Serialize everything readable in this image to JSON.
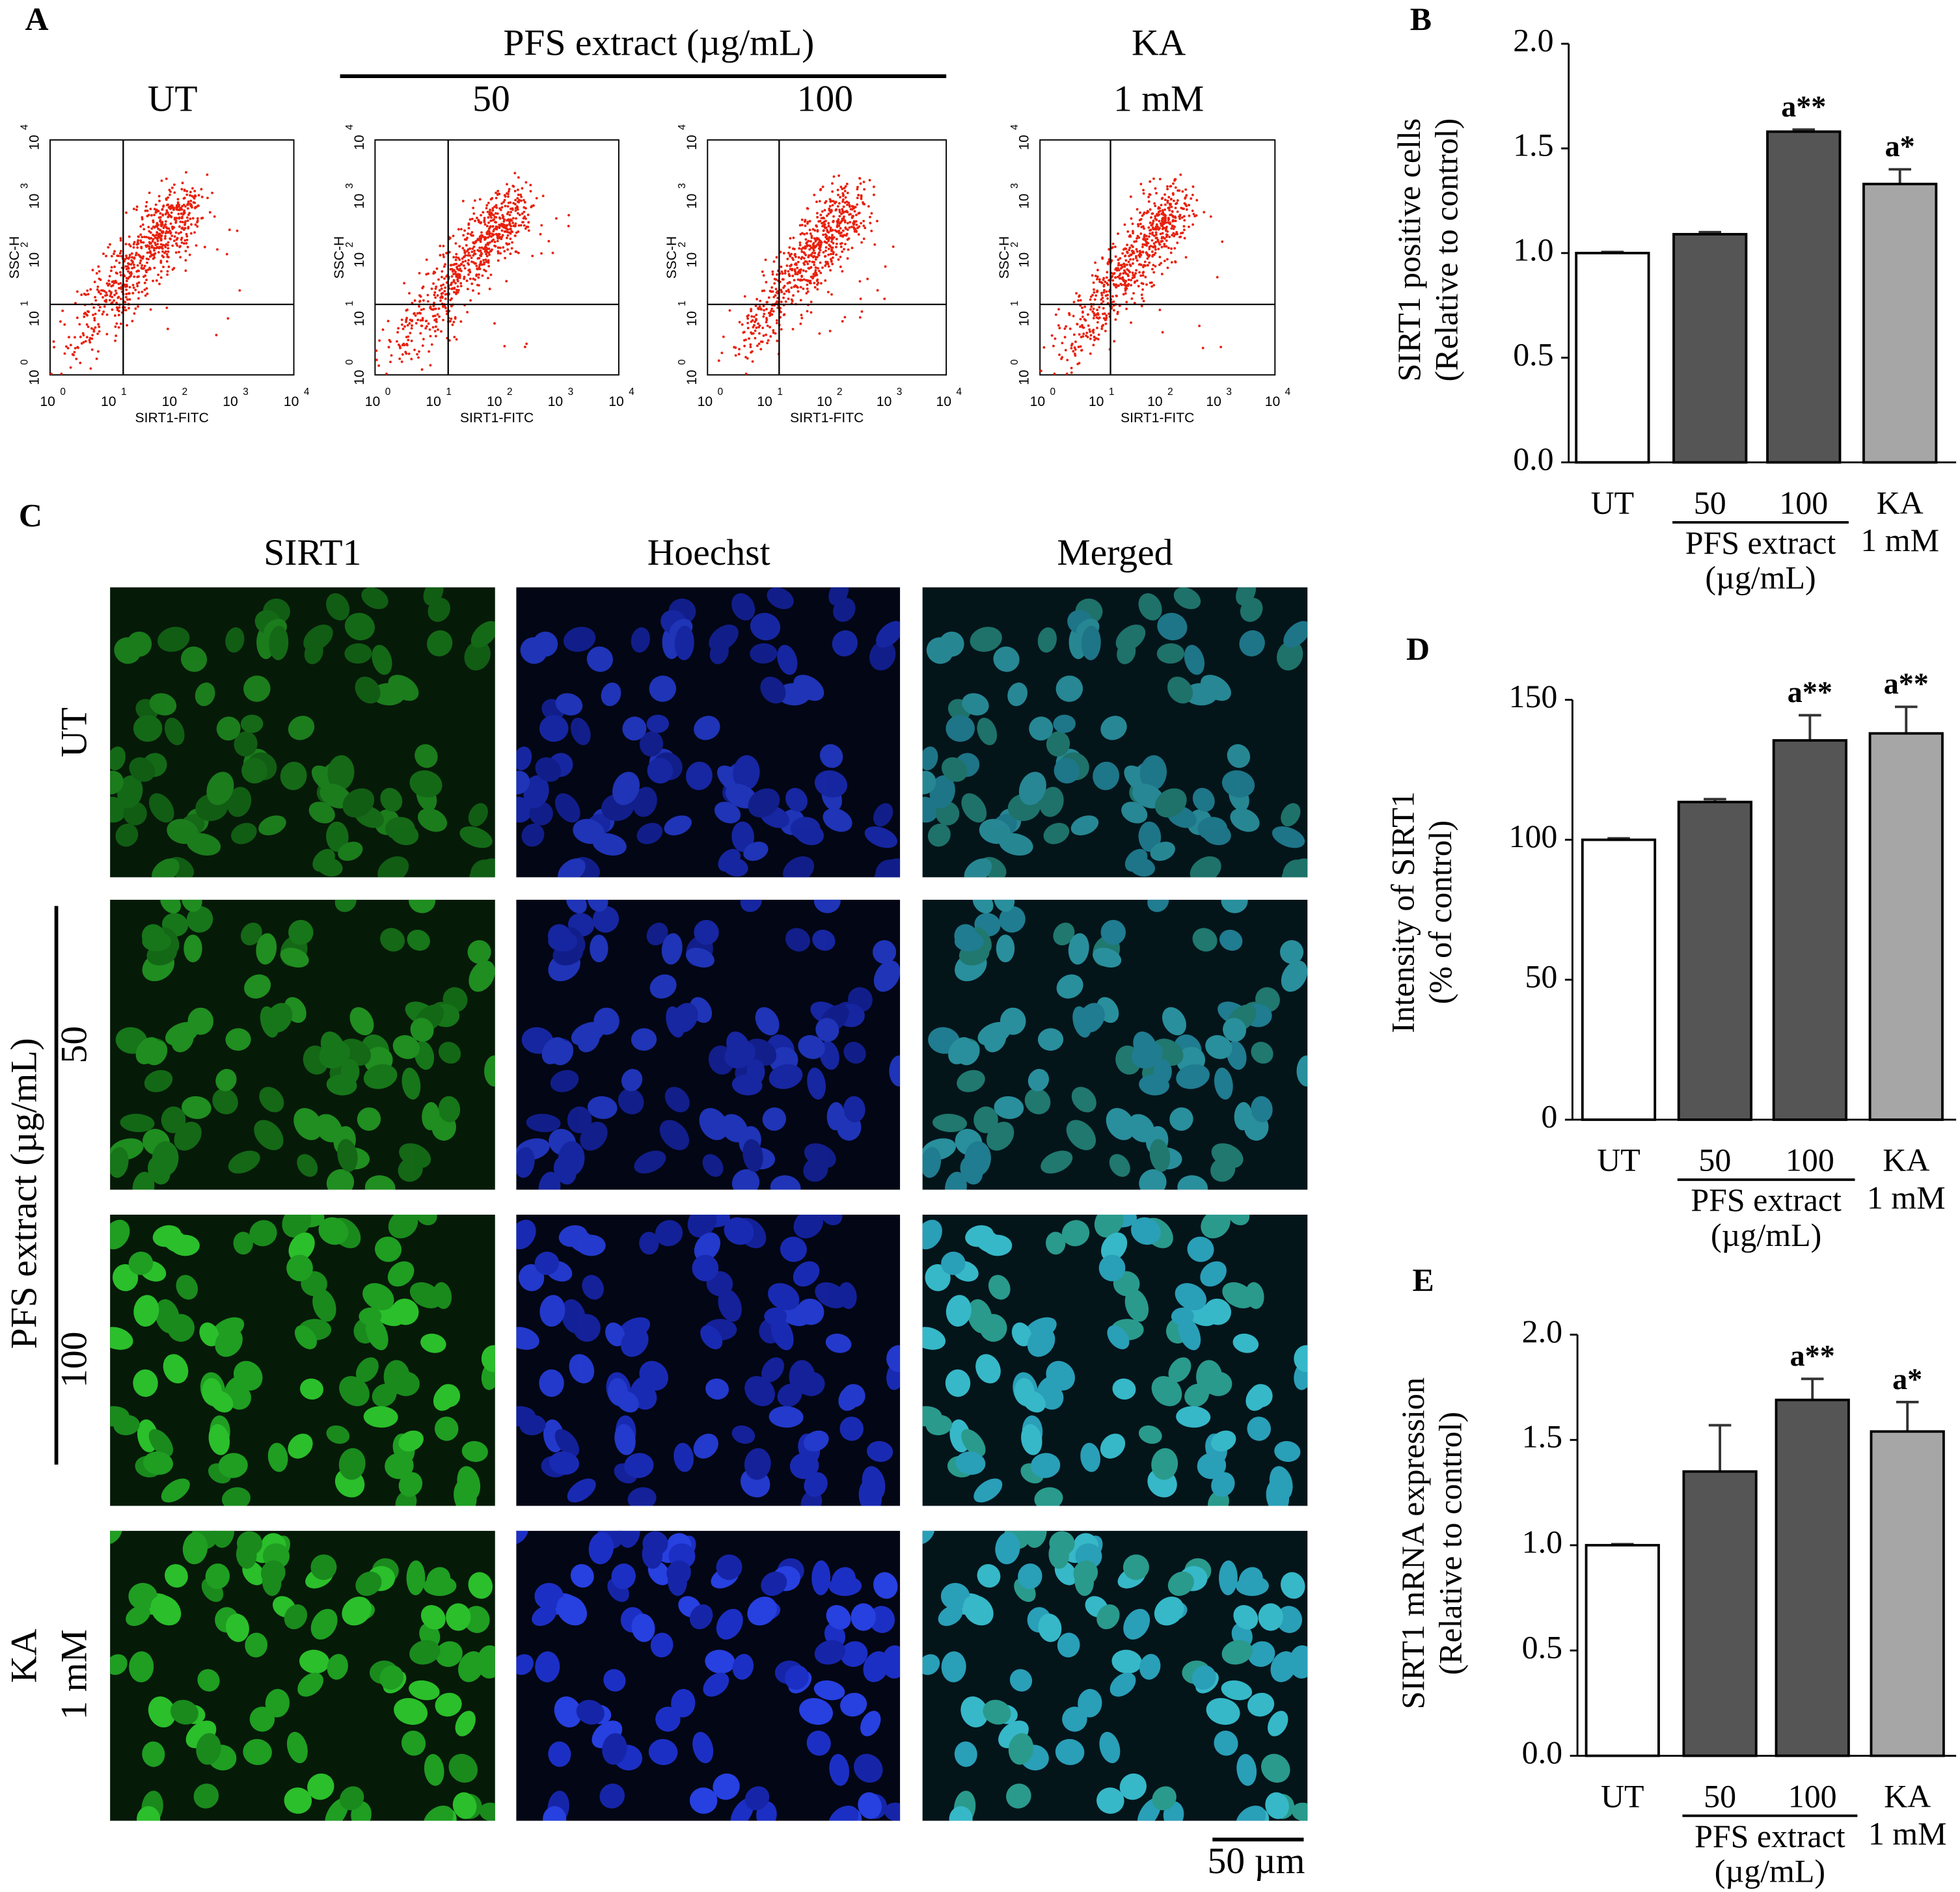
{
  "panel_a": {
    "letter": "A",
    "group_title": "PFS extract (µg/mL)",
    "plots": [
      {
        "title": "UT"
      },
      {
        "title": "50"
      },
      {
        "title": "100"
      },
      {
        "title": "1 mM",
        "title_above": "KA"
      }
    ],
    "x_label": "SIRT1-FITC",
    "y_label": "SSC-H",
    "tick_base": "10",
    "tick_exponents": [
      "0",
      "1",
      "2",
      "3",
      "4"
    ]
  },
  "panel_c": {
    "letter": "C",
    "columns": [
      "SIRT1",
      "Hoechst",
      "Merged"
    ],
    "rows": [
      "UT",
      "50",
      "100",
      "1 mM"
    ],
    "row_group": "PFS extract (µg/mL)",
    "last_row_above": "KA",
    "scale_bar": "50 µm"
  },
  "chart_data": [
    {
      "type": "bar",
      "panel": "B",
      "y_label": [
        "SIRT1 positive cells",
        "(Relative to control)"
      ],
      "categories": [
        "UT",
        "50",
        "100",
        "KA"
      ],
      "category_notes": [
        null,
        null,
        null,
        "1 mM"
      ],
      "group_label": [
        "PFS extract",
        "(µg/mL)"
      ],
      "values": [
        1.0,
        1.09,
        1.58,
        1.33
      ],
      "errors": [
        0.005,
        0.01,
        0.01,
        0.07
      ],
      "annotations": [
        null,
        null,
        "a**",
        "a*"
      ],
      "colors": [
        "#ffffff",
        "#555555",
        "#555555",
        "#a6a6a6"
      ],
      "ylim": [
        0,
        2
      ],
      "yticks": [
        {
          "value": 0,
          "label": "0.0"
        },
        {
          "value": 0.5,
          "label": "0.5"
        },
        {
          "value": 1,
          "label": "1.0"
        },
        {
          "value": 1.5,
          "label": "1.5"
        },
        {
          "value": 2,
          "label": "2.0"
        }
      ]
    },
    {
      "type": "bar",
      "panel": "D",
      "y_label": [
        "Intensity of SIRT1",
        "(% of control)"
      ],
      "categories": [
        "UT",
        "50",
        "100",
        "KA"
      ],
      "category_notes": [
        null,
        null,
        null,
        "1 mM"
      ],
      "group_label": [
        "PFS extract",
        "(µg/mL)"
      ],
      "values": [
        100,
        113.5,
        135.5,
        138
      ],
      "errors": [
        0.5,
        1,
        9,
        9.5
      ],
      "annotations": [
        null,
        null,
        "a**",
        "a**"
      ],
      "colors": [
        "#ffffff",
        "#555555",
        "#555555",
        "#a6a6a6"
      ],
      "ylim": [
        0,
        150
      ],
      "yticks": [
        0,
        50,
        100,
        150
      ]
    },
    {
      "type": "bar",
      "panel": "E",
      "y_label": [
        "SIRT1 mRNA expression",
        "(Relative to control)"
      ],
      "categories": [
        "UT",
        "50",
        "100",
        "KA"
      ],
      "category_notes": [
        null,
        null,
        null,
        "1 mM"
      ],
      "group_label": [
        "PFS extract",
        "(µg/mL)"
      ],
      "values": [
        1.0,
        1.35,
        1.69,
        1.54
      ],
      "errors": [
        0.005,
        0.22,
        0.1,
        0.14
      ],
      "annotations": [
        null,
        null,
        "a**",
        "a*"
      ],
      "colors": [
        "#ffffff",
        "#555555",
        "#555555",
        "#a6a6a6"
      ],
      "ylim": [
        0,
        2
      ],
      "yticks": [
        {
          "value": 0,
          "label": "0.0"
        },
        {
          "value": 0.5,
          "label": "0.5"
        },
        {
          "value": 1,
          "label": "1.0"
        },
        {
          "value": 1.5,
          "label": "1.5"
        },
        {
          "value": 2,
          "label": "2.0"
        }
      ]
    }
  ]
}
